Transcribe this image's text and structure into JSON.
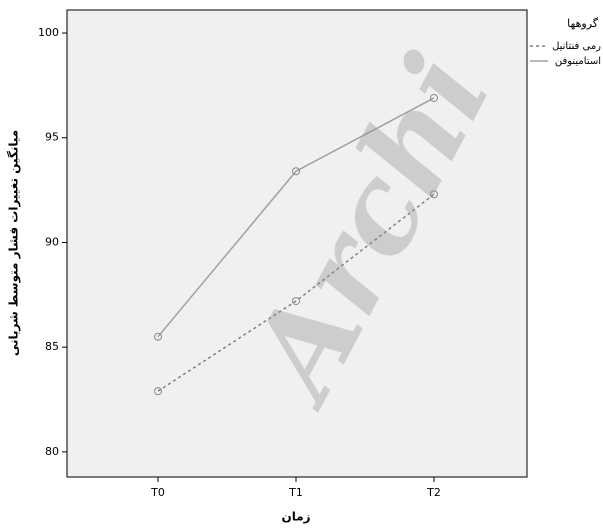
{
  "chart_data": {
    "type": "line",
    "x_label": "زمان",
    "y_label": "میانگین تغییرات فشار متوسط شریانی",
    "legend_title": "گروهها",
    "watermark": "Archi",
    "categories": [
      "T0",
      "T1",
      "T2"
    ],
    "series": [
      {
        "name": "رمی فنتانیل",
        "color": "#808080",
        "dash": true,
        "values": [
          82.9,
          87.2,
          92.3
        ]
      },
      {
        "name": "استامینوفن",
        "color": "#a0a0a0",
        "dash": false,
        "values": [
          85.5,
          93.4,
          96.9
        ]
      }
    ],
    "ylim": [
      78.8,
      101.1
    ],
    "yticks": [
      80,
      85,
      90,
      95,
      100
    ],
    "legend": "right"
  }
}
